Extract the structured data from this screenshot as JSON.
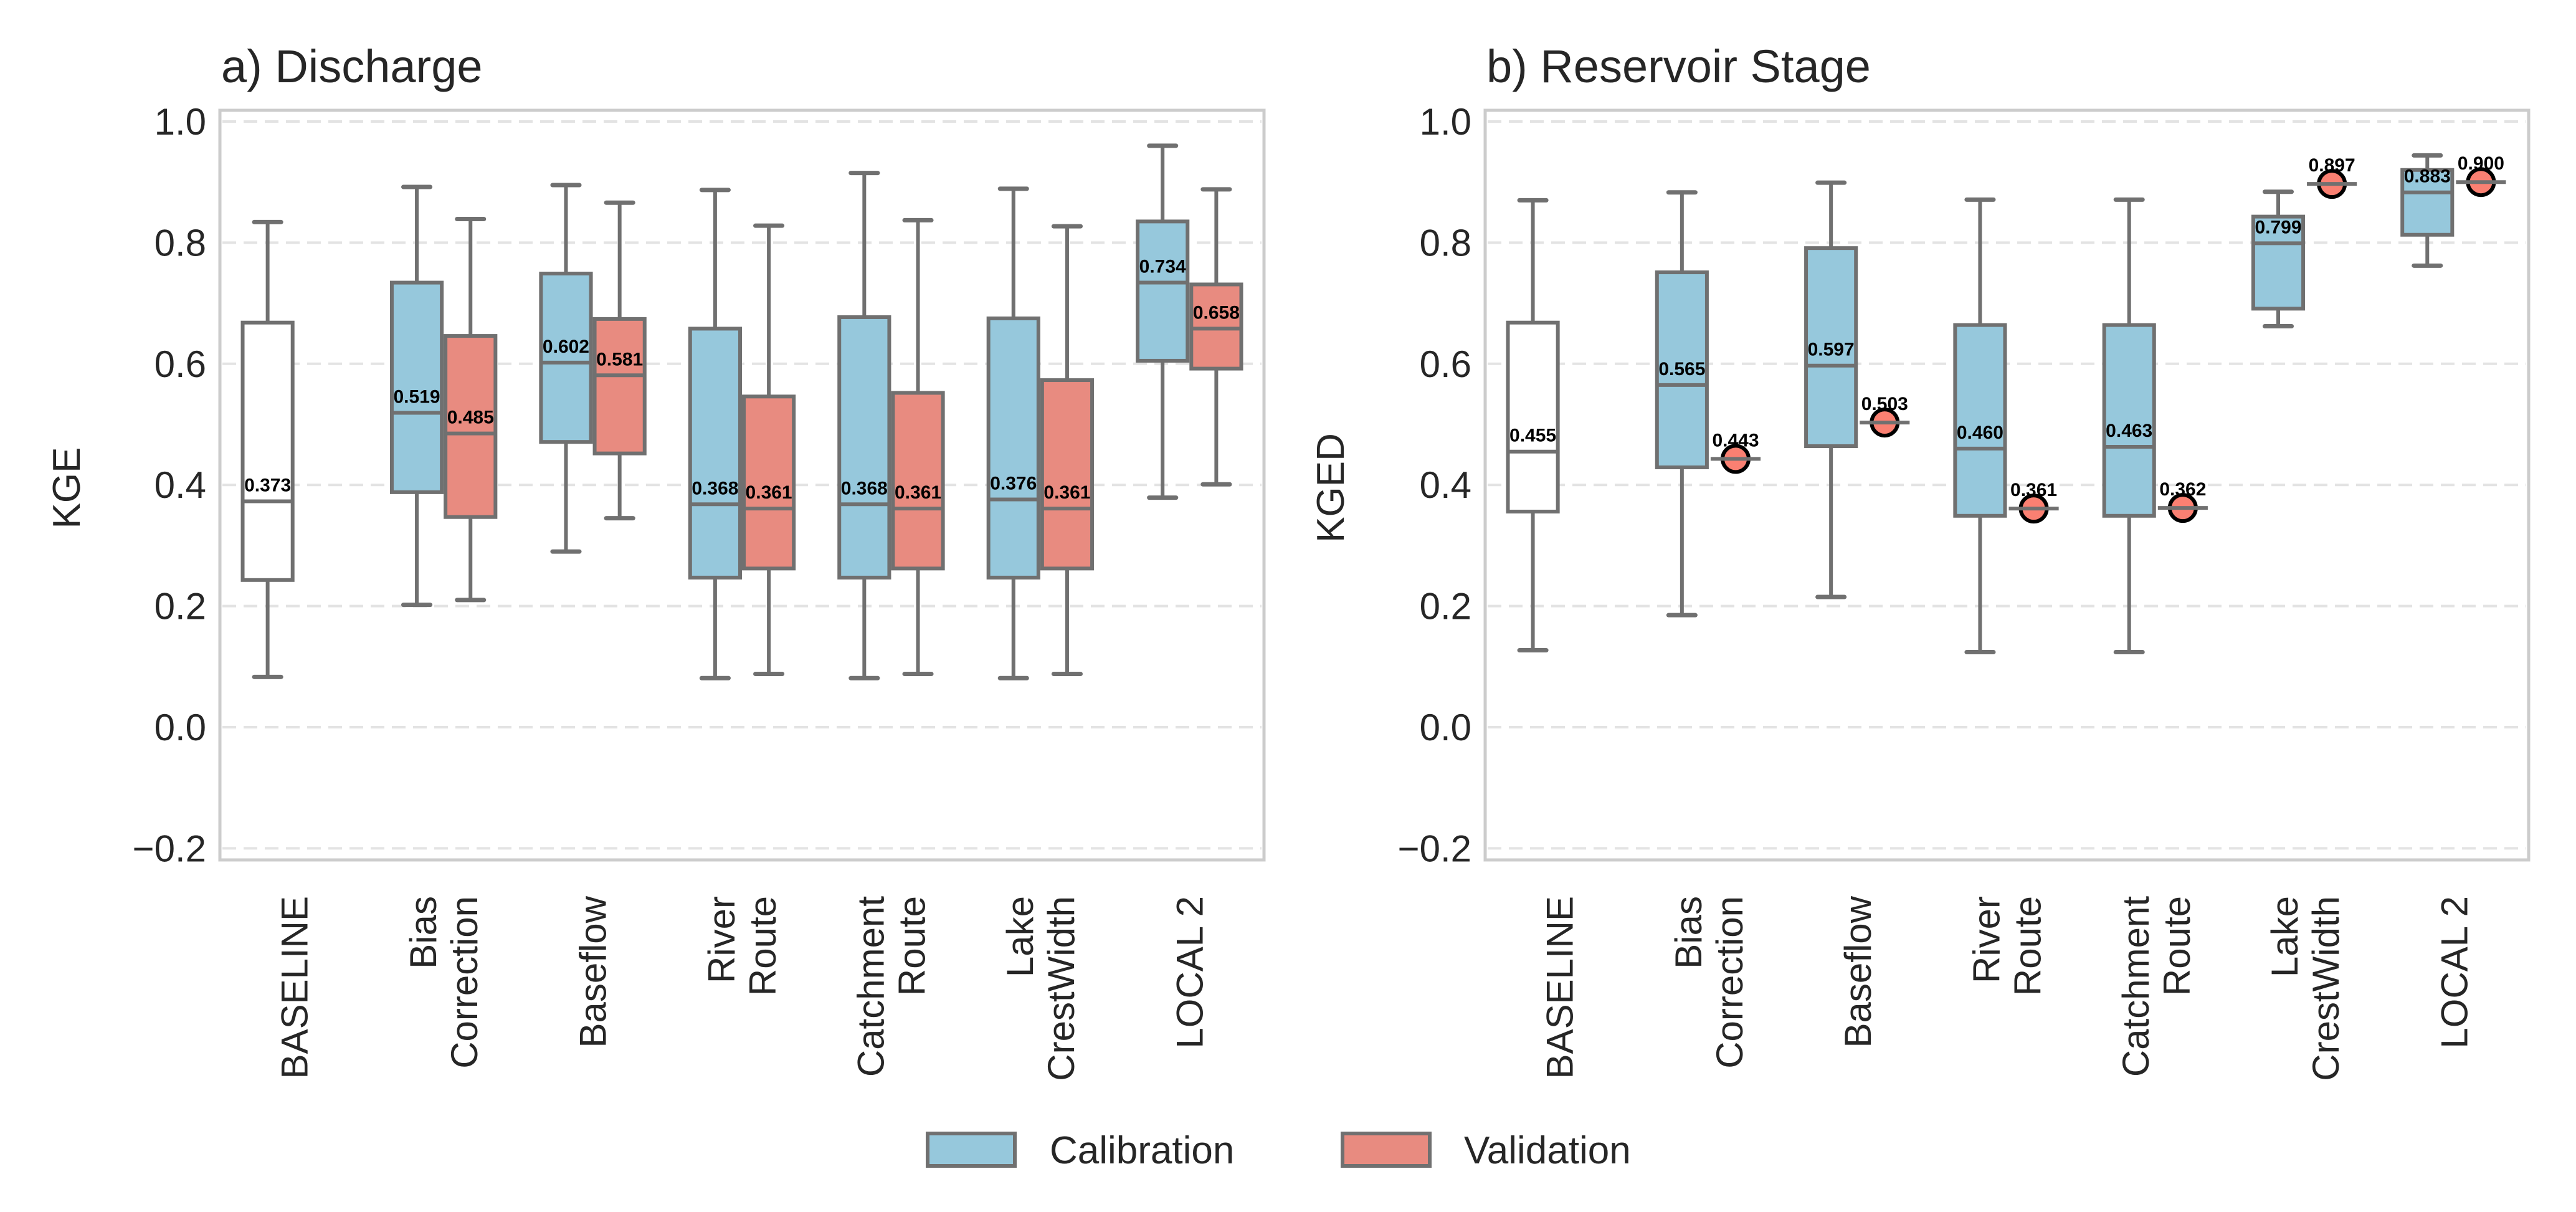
{
  "chart_data": [
    {
      "type": "box",
      "panel": "a",
      "title": "a) Discharge",
      "xlabel": "",
      "ylabel": "KGE",
      "ylim": [
        -0.22,
        1.02
      ],
      "yticks": [
        -0.2,
        0.0,
        0.2,
        0.4,
        0.6,
        0.8,
        1.0
      ],
      "ytick_labels": [
        "−0.2",
        "0.0",
        "0.2",
        "0.4",
        "0.6",
        "0.8",
        "1.0"
      ],
      "grid": "y-dashed",
      "categories": [
        [
          "BASELINE"
        ],
        [
          "Bias",
          "Correction"
        ],
        [
          "Baseflow"
        ],
        [
          "River",
          "Route"
        ],
        [
          "Catchment",
          "Route"
        ],
        [
          "Lake",
          "CrestWidth"
        ],
        [
          "LOCAL 2"
        ]
      ],
      "series": [
        {
          "name": "Calibration",
          "boxes": [
            {
              "category": 0,
              "style": "baseline",
              "whislo": 0.083,
              "q1": 0.243,
              "median": 0.373,
              "q3": 0.668,
              "whishi": 0.834,
              "label": "0.373"
            },
            {
              "category": 1,
              "whislo": 0.202,
              "q1": 0.388,
              "median": 0.519,
              "q3": 0.734,
              "whishi": 0.892,
              "label": "0.519"
            },
            {
              "category": 2,
              "whislo": 0.29,
              "q1": 0.471,
              "median": 0.602,
              "q3": 0.749,
              "whishi": 0.895,
              "label": "0.602"
            },
            {
              "category": 3,
              "whislo": 0.081,
              "q1": 0.247,
              "median": 0.368,
              "q3": 0.658,
              "whishi": 0.887,
              "label": "0.368"
            },
            {
              "category": 4,
              "whislo": 0.081,
              "q1": 0.247,
              "median": 0.368,
              "q3": 0.677,
              "whishi": 0.915,
              "label": "0.368"
            },
            {
              "category": 5,
              "whislo": 0.081,
              "q1": 0.247,
              "median": 0.376,
              "q3": 0.675,
              "whishi": 0.889,
              "label": "0.376"
            },
            {
              "category": 6,
              "whislo": 0.379,
              "q1": 0.605,
              "median": 0.734,
              "q3": 0.835,
              "whishi": 0.96,
              "label": "0.734"
            }
          ]
        },
        {
          "name": "Validation",
          "boxes": [
            {
              "category": 1,
              "whislo": 0.21,
              "q1": 0.347,
              "median": 0.485,
              "q3": 0.646,
              "whishi": 0.839,
              "label": "0.485"
            },
            {
              "category": 2,
              "whislo": 0.345,
              "q1": 0.452,
              "median": 0.581,
              "q3": 0.674,
              "whishi": 0.866,
              "label": "0.581"
            },
            {
              "category": 3,
              "whislo": 0.088,
              "q1": 0.262,
              "median": 0.361,
              "q3": 0.546,
              "whishi": 0.828,
              "label": "0.361"
            },
            {
              "category": 4,
              "whislo": 0.088,
              "q1": 0.262,
              "median": 0.361,
              "q3": 0.552,
              "whishi": 0.837,
              "label": "0.361"
            },
            {
              "category": 5,
              "whislo": 0.088,
              "q1": 0.262,
              "median": 0.361,
              "q3": 0.573,
              "whishi": 0.827,
              "label": "0.361"
            },
            {
              "category": 6,
              "whislo": 0.401,
              "q1": 0.592,
              "median": 0.658,
              "q3": 0.731,
              "whishi": 0.888,
              "label": "0.658"
            }
          ]
        }
      ]
    },
    {
      "type": "box",
      "panel": "b",
      "title": "b) Reservoir Stage",
      "xlabel": "",
      "ylabel": "KGED",
      "ylim": [
        -0.22,
        1.02
      ],
      "yticks": [
        -0.2,
        0.0,
        0.2,
        0.4,
        0.6,
        0.8,
        1.0
      ],
      "ytick_labels": [
        "−0.2",
        "0.0",
        "0.2",
        "0.4",
        "0.6",
        "0.8",
        "1.0"
      ],
      "grid": "y-dashed",
      "categories": [
        [
          "BASELINE"
        ],
        [
          "Bias",
          "Correction"
        ],
        [
          "Baseflow"
        ],
        [
          "River",
          "Route"
        ],
        [
          "Catchment",
          "Route"
        ],
        [
          "Lake",
          "CrestWidth"
        ],
        [
          "LOCAL 2"
        ]
      ],
      "series": [
        {
          "name": "Calibration",
          "boxes": [
            {
              "category": 0,
              "style": "baseline",
              "whislo": 0.127,
              "q1": 0.356,
              "median": 0.455,
              "q3": 0.668,
              "whishi": 0.87,
              "label": "0.455"
            },
            {
              "category": 1,
              "whislo": 0.185,
              "q1": 0.429,
              "median": 0.565,
              "q3": 0.751,
              "whishi": 0.883,
              "label": "0.565"
            },
            {
              "category": 2,
              "whislo": 0.215,
              "q1": 0.464,
              "median": 0.597,
              "q3": 0.791,
              "whishi": 0.899,
              "label": "0.597"
            },
            {
              "category": 3,
              "whislo": 0.124,
              "q1": 0.349,
              "median": 0.46,
              "q3": 0.664,
              "whishi": 0.871,
              "label": "0.460"
            },
            {
              "category": 4,
              "whislo": 0.124,
              "q1": 0.349,
              "median": 0.463,
              "q3": 0.664,
              "whishi": 0.871,
              "label": "0.463"
            },
            {
              "category": 5,
              "whislo": 0.662,
              "q1": 0.691,
              "median": 0.799,
              "q3": 0.843,
              "whishi": 0.884,
              "label": "0.799"
            },
            {
              "category": 6,
              "whislo": 0.762,
              "q1": 0.813,
              "median": 0.883,
              "q3": 0.92,
              "whishi": 0.944,
              "label": "0.883"
            }
          ]
        },
        {
          "name": "Validation",
          "points": [
            {
              "category": 1,
              "value": 0.443,
              "label": "0.443"
            },
            {
              "category": 2,
              "value": 0.503,
              "label": "0.503"
            },
            {
              "category": 3,
              "value": 0.361,
              "label": "0.361"
            },
            {
              "category": 4,
              "value": 0.362,
              "label": "0.362"
            },
            {
              "category": 5,
              "value": 0.897,
              "label": "0.897"
            },
            {
              "category": 6,
              "value": 0.9,
              "label": "0.900"
            }
          ]
        }
      ]
    }
  ],
  "legend": {
    "placement": "bottom-center",
    "items": [
      {
        "label": "Calibration",
        "color": "#96c8dc"
      },
      {
        "label": "Validation",
        "color": "#e88b80"
      }
    ]
  },
  "colors": {
    "calibration": "#96c8dc",
    "validation": "#e88b80",
    "validation_point": "#fa8072",
    "baseline_fill": "#ffffff",
    "box_edge": "#707070",
    "text": "#262626"
  }
}
